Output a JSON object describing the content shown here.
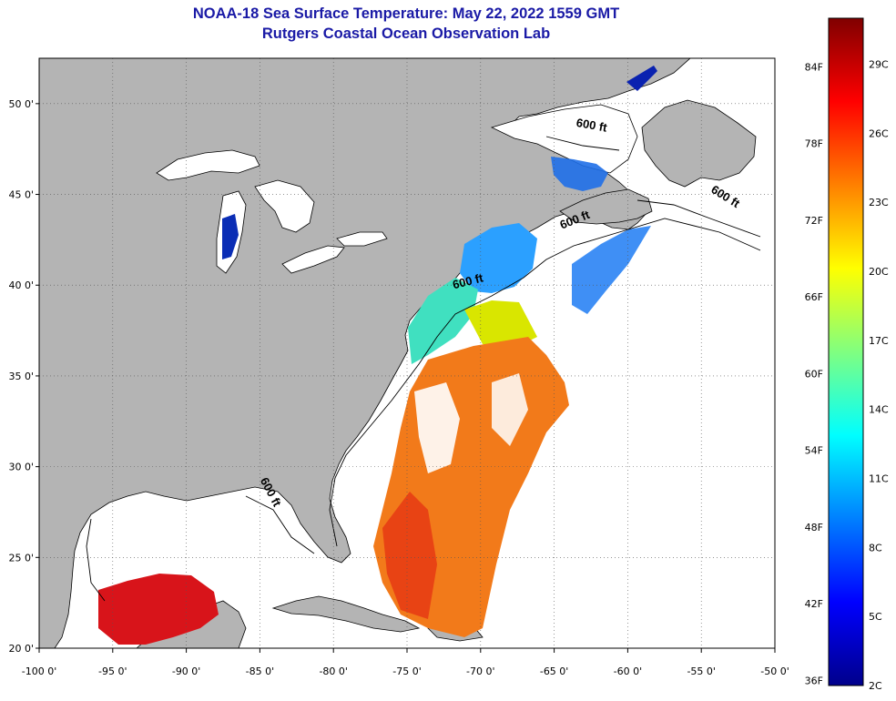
{
  "title": {
    "line1": "NOAA-18 Sea Surface Temperature:  May 22, 2022 1559 GMT",
    "line2": "Rutgers Coastal Ocean Observation Lab"
  },
  "map": {
    "lon_range": [
      -100,
      -50
    ],
    "lat_range": [
      20,
      52.5
    ],
    "lat_ticks": [
      {
        "value": 50,
        "label": "50 0'"
      },
      {
        "value": 45,
        "label": "45 0'"
      },
      {
        "value": 40,
        "label": "40 0'"
      },
      {
        "value": 35,
        "label": "35 0'"
      },
      {
        "value": 30,
        "label": "30 0'"
      },
      {
        "value": 25,
        "label": "25 0'"
      },
      {
        "value": 20,
        "label": "20 0'"
      }
    ],
    "lon_ticks": [
      {
        "value": -100,
        "label": "-100 0'"
      },
      {
        "value": -95,
        "label": "-95 0'"
      },
      {
        "value": -90,
        "label": "-90 0'"
      },
      {
        "value": -85,
        "label": "-85 0'"
      },
      {
        "value": -80,
        "label": "-80 0'"
      },
      {
        "value": -75,
        "label": "-75 0'"
      },
      {
        "value": -70,
        "label": "-70 0'"
      },
      {
        "value": -65,
        "label": "-65 0'"
      },
      {
        "value": -60,
        "label": "-60 0'"
      },
      {
        "value": -55,
        "label": "-55 0'"
      },
      {
        "value": -50,
        "label": "-50 0'"
      }
    ],
    "contour_labels": [
      {
        "text": "600 ft",
        "lon": -62.5,
        "lat": 48.6,
        "rotate": 10
      },
      {
        "text": "600 ft",
        "lon": -53.5,
        "lat": 44.7,
        "rotate": 32
      },
      {
        "text": "600 ft",
        "lon": -63.5,
        "lat": 43.4,
        "rotate": -22
      },
      {
        "text": "600 ft",
        "lon": -70.8,
        "lat": 40.0,
        "rotate": -14
      },
      {
        "text": "600 ft",
        "lon": -84.5,
        "lat": 28.5,
        "rotate": 62
      }
    ],
    "colors": {
      "land": "#b4b4b4",
      "water": "#ffffff",
      "grid": "#555555"
    }
  },
  "colorbar": {
    "min_c": 2,
    "max_c": 31,
    "fahrenheit_labels": [
      "84F",
      "78F",
      "72F",
      "66F",
      "60F",
      "54F",
      "48F",
      "42F",
      "36F"
    ],
    "celsius_labels": [
      "29C",
      "26C",
      "23C",
      "20C",
      "17C",
      "14C",
      "11C",
      "8C",
      "5C",
      "2C"
    ],
    "palette": [
      "#00008b",
      "#0000ff",
      "#0080ff",
      "#00ffff",
      "#80ff80",
      "#ffff00",
      "#ff8000",
      "#ff0000",
      "#800000"
    ]
  }
}
